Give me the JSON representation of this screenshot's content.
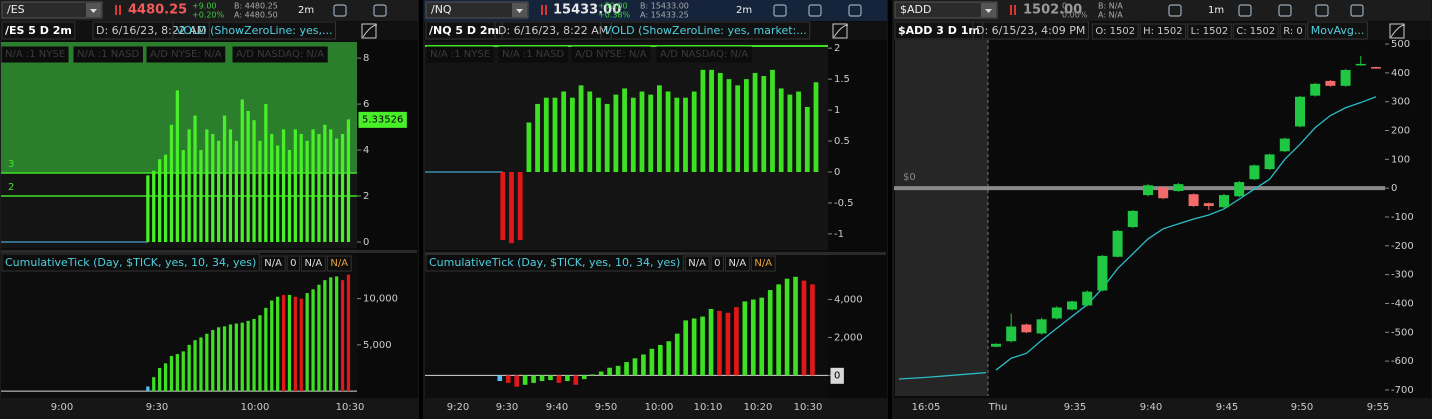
{
  "panels": [
    {
      "toolbar": {
        "symbol": "/ES",
        "last": "4480.25",
        "last_color": "#f05a5a",
        "change": "+9.00",
        "change_pct": "+0.20%",
        "change_color": "#3ecf3e",
        "bid": "B: 4480.25",
        "ask": "A: 4480.50",
        "aggregation": "2m"
      },
      "header": {
        "title": "/ES 5 D 2m",
        "date": "D: 6/16/23, 8:22 AM",
        "study": "VOLD (ShowZeroLine: yes,..."
      },
      "market_labels": [
        "N/A :1 NYSE",
        "N/A :1 NASD",
        "A/D NYSE: N/A",
        "A/D NASDAQ: N/A"
      ],
      "vold": {
        "type": "bar",
        "ylim": [
          -0.26,
          8.7
        ],
        "yticks": [
          0,
          2,
          4,
          6,
          8
        ],
        "levels": [
          3,
          2
        ],
        "band_color": "#2b7e2b",
        "color": "#49f02a",
        "neg_color": "#e01818",
        "last_tag": true,
        "values": [
          2.9,
          3.1,
          3.6,
          3.8,
          5.1,
          6.6,
          4.0,
          4.9,
          5.5,
          4.0,
          4.9,
          4.7,
          4.4,
          5.5,
          4.9,
          4.4,
          6.2,
          5.7,
          5.3,
          4.4,
          6.0,
          4.7,
          4.2,
          4.9,
          4.0,
          4.9,
          4.7,
          4.4,
          4.9,
          4.7,
          5.1,
          4.9,
          4.5,
          4.7,
          5.33526
        ]
      },
      "tick_header": {
        "study": "CumulativeTick (Day, $TICK, yes, 10, 34, yes)",
        "fields": [
          "N/A",
          "0",
          "N/A",
          "N/A"
        ],
        "field_colors": [
          "#dddddd",
          "#dddddd",
          "#dddddd",
          "#e8a33a"
        ]
      },
      "tick": {
        "type": "bar",
        "ylim": [
          -530,
          12770
        ],
        "yticks": [
          {
            "value": 5000,
            "label": "5,000"
          },
          {
            "value": 10000,
            "label": "10,000"
          }
        ],
        "values": [
          500,
          1500,
          2500,
          3000,
          3800,
          4000,
          4300,
          5000,
          5500,
          5800,
          6200,
          6600,
          6900,
          7000,
          7200,
          7300,
          7400,
          7600,
          7800,
          8200,
          9000,
          9800,
          10200,
          10400,
          10400,
          10200,
          10000,
          10600,
          11000,
          11500,
          12000,
          12300,
          12400,
          12000,
          12600
        ],
        "colors": [
          "#4fc3f7",
          "#3ee024",
          "#3ee024",
          "#3ee024",
          "#3ee024",
          "#3ee024",
          "#3ee024",
          "#3ee024",
          "#3ee024",
          "#3ee024",
          "#3ee024",
          "#3ee024",
          "#3ee024",
          "#3ee024",
          "#3ee024",
          "#3ee024",
          "#3ee024",
          "#3ee024",
          "#3ee024",
          "#3ee024",
          "#3ee024",
          "#3ee024",
          "#3ee024",
          "#e01818",
          "#3ee024",
          "#e01818",
          "#e01818",
          "#3ee024",
          "#3ee024",
          "#3ee024",
          "#3ee024",
          "#3ee024",
          "#3ee024",
          "#e01818",
          "#e01818"
        ]
      },
      "time_axis": [
        "9:00",
        "9:30",
        "10:00",
        "10:30"
      ]
    },
    {
      "toolbar": {
        "symbol": "/NQ",
        "last": "15433.00",
        "last_color": "#e8e8e8",
        "change": "+59.00",
        "change_pct": "+0.38%",
        "change_color": "#3ecf3e",
        "bid": "B: 15433.00",
        "ask": "A: 15433.25",
        "aggregation": "2m"
      },
      "header": {
        "title": "/NQ 5 D 2m",
        "date": "D: 6/16/23, 8:22 AM",
        "study": "VOLD (ShowZeroLine: yes, market:..."
      },
      "market_labels": [
        "N/A :1 NYSE",
        "N/A :1 NASD",
        "A/D NYSE: N/A",
        "A/D NASDAQ: N/A"
      ],
      "vold": {
        "type": "bar",
        "ylim": [
          -1.26,
          2.1
        ],
        "yticks": [
          2,
          1.5,
          1,
          0.5,
          0,
          -0.5,
          -1
        ],
        "color": "#3ee024",
        "neg_color": "#e01818",
        "values": [
          -1.1,
          -1.15,
          -1.1,
          0.8,
          1.1,
          1.2,
          1.2,
          1.3,
          1.2,
          1.4,
          1.3,
          1.2,
          1.1,
          1.25,
          1.35,
          1.2,
          1.3,
          1.25,
          1.4,
          1.3,
          1.2,
          1.2,
          1.3,
          1.65,
          1.65,
          1.6,
          1.5,
          1.4,
          1.5,
          1.6,
          1.55,
          1.65,
          1.35,
          1.25,
          1.3,
          1.05,
          1.45
        ]
      },
      "tick_header": {
        "study": "CumulativeTick (Day, $TICK, yes, 10, 34, yes)",
        "fields": [
          "N/A",
          "0",
          "N/A",
          "N/A"
        ],
        "field_colors": [
          "#dddddd",
          "#dddddd",
          "#dddddd",
          "#e8a33a"
        ]
      },
      "tick": {
        "type": "bar",
        "ylim": [
          -1091,
          5400
        ],
        "yticks": [
          0,
          {
            "value": 2000,
            "label": "2,000"
          },
          {
            "value": 4000,
            "label": "4,000"
          }
        ],
        "values": [
          -300,
          -400,
          -600,
          -500,
          -400,
          -300,
          -250,
          -400,
          -300,
          -500,
          -200,
          50,
          200,
          400,
          500,
          700,
          900,
          1100,
          1400,
          1600,
          1800,
          2200,
          2900,
          3000,
          3100,
          3500,
          3400,
          3300,
          3600,
          3900,
          4000,
          4100,
          4500,
          4800,
          5100,
          5200,
          5000,
          4800
        ],
        "colors": [
          "#4fc3f7",
          "#e01818",
          "#e01818",
          "#3ee024",
          "#3ee024",
          "#3ee024",
          "#3ee024",
          "#e01818",
          "#3ee024",
          "#e01818",
          "#3ee024",
          "#3ee024",
          "#3ee024",
          "#3ee024",
          "#3ee024",
          "#3ee024",
          "#3ee024",
          "#3ee024",
          "#3ee024",
          "#3ee024",
          "#3ee024",
          "#3ee024",
          "#3ee024",
          "#3ee024",
          "#3ee024",
          "#3ee024",
          "#e01818",
          "#e01818",
          "#e01818",
          "#3ee024",
          "#3ee024",
          "#3ee024",
          "#3ee024",
          "#3ee024",
          "#3ee024",
          "#3ee024",
          "#e01818",
          "#e01818"
        ]
      },
      "time_axis": [
        "9:20",
        "9:30",
        "9:40",
        "9:50",
        "10:00",
        "10:10",
        "10:20",
        "10:30"
      ]
    },
    {
      "toolbar": {
        "symbol": "$ADD",
        "last": "1502.00",
        "last_color": "#9a9a9a",
        "change": "0",
        "change_pct": "0.00%",
        "change_color": "#9a9a9a",
        "bid": "B: N/A",
        "ask": "A: N/A",
        "aggregation": "1m"
      },
      "header": {
        "title": "$ADD 3 D 1m",
        "date": "D: 6/15/23, 4:09 PM",
        "ohlc": [
          "O: 1502",
          "H: 1502",
          "L: 1502",
          "C: 1502",
          "R: 0"
        ],
        "study": "MovAvg..."
      },
      "price": {
        "type": "candlestick",
        "ylim": [
          -721,
          514
        ],
        "yticks": [
          500,
          400,
          300,
          200,
          100,
          0,
          -100,
          -200,
          -300,
          -400,
          -500,
          -600,
          -700
        ],
        "zero_label": "$0",
        "up_color": "#1fc742",
        "down_color": "#f26b6b",
        "open": [
          -550,
          -531,
          -473,
          -504,
          -452,
          -421,
          -407,
          -355,
          -238,
          -135,
          -24,
          3,
          -10,
          -21,
          -52,
          -66,
          -28,
          31,
          66,
          128,
          214,
          321,
          372,
          355,
          428,
          420
        ],
        "high": [
          -538,
          -435,
          -470,
          -450,
          -410,
          -390,
          -355,
          -232,
          -145,
          -76,
          15,
          5,
          18,
          -18,
          -50,
          -20,
          25,
          82,
          120,
          175,
          320,
          365,
          375,
          413,
          459,
          422
        ],
        "low": [
          -552,
          -535,
          -503,
          -508,
          -455,
          -425,
          -410,
          -358,
          -240,
          -138,
          -28,
          -38,
          -12,
          -65,
          -76,
          -69,
          -31,
          28,
          63,
          125,
          211,
          318,
          352,
          352,
          425,
          415
        ],
        "close": [
          -540,
          -480,
          -500,
          -455,
          -414,
          -393,
          -359,
          -235,
          -148,
          -79,
          10,
          -35,
          14,
          -62,
          -62,
          -24,
          21,
          79,
          117,
          172,
          317,
          362,
          355,
          410,
          431,
          417
        ],
        "ma": {
          "color": "#2bbcc8",
          "values": [
            -631,
            -590,
            -573,
            -528,
            -486,
            -445,
            -404,
            -348,
            -279,
            -228,
            -176,
            -141,
            -124,
            -107,
            -93,
            -72,
            -38,
            -3,
            31,
            100,
            152,
            210,
            252,
            279,
            297,
            317
          ]
        },
        "ma_prior": [
          -662,
          -656,
          -648,
          -640
        ]
      },
      "time_axis": [
        "16:05",
        "Thu",
        "9:35",
        "9:40",
        "9:45",
        "9:50",
        "9:55"
      ]
    }
  ]
}
